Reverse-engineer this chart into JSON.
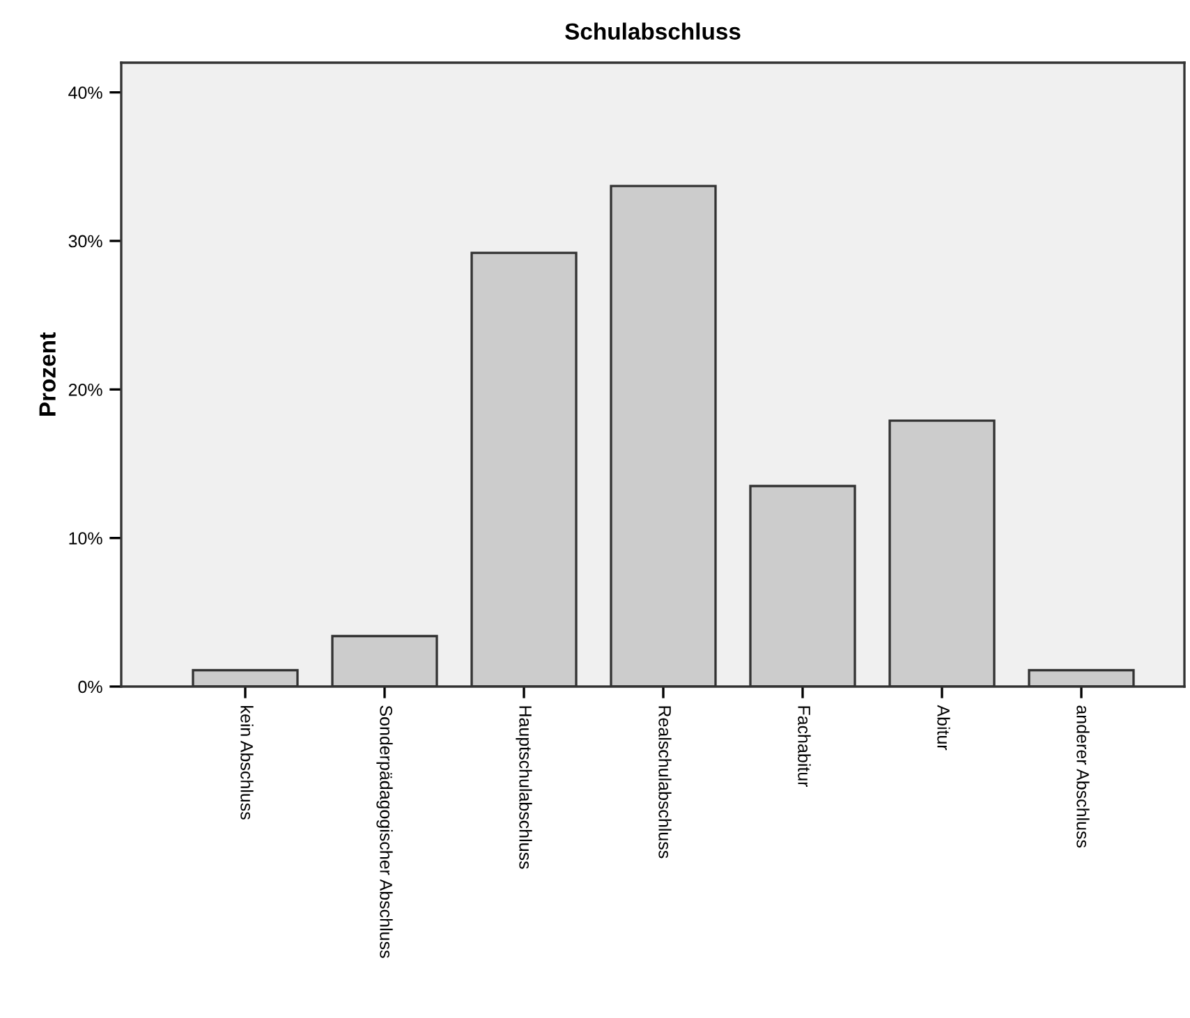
{
  "chart_data": {
    "type": "bar",
    "title": "Schulabschluss",
    "ylabel": "Prozent",
    "categories": [
      "kein Abschluss",
      "Sonderpädagogischer Abschluss",
      "Hauptschulabschluss",
      "Realschulabschluss",
      "Fachabitur",
      "Abitur",
      "anderer Abschluss"
    ],
    "values": [
      1.1,
      3.4,
      29.2,
      33.7,
      13.5,
      17.9,
      1.1
    ],
    "color": "#cccccc",
    "ylim": [
      0,
      42
    ],
    "yticks": [
      {
        "value": 0,
        "label": "0%"
      },
      {
        "value": 10,
        "label": "10%"
      },
      {
        "value": 20,
        "label": "20%"
      },
      {
        "value": 30,
        "label": "30%"
      },
      {
        "value": 40,
        "label": "40%"
      }
    ],
    "grid": false
  }
}
